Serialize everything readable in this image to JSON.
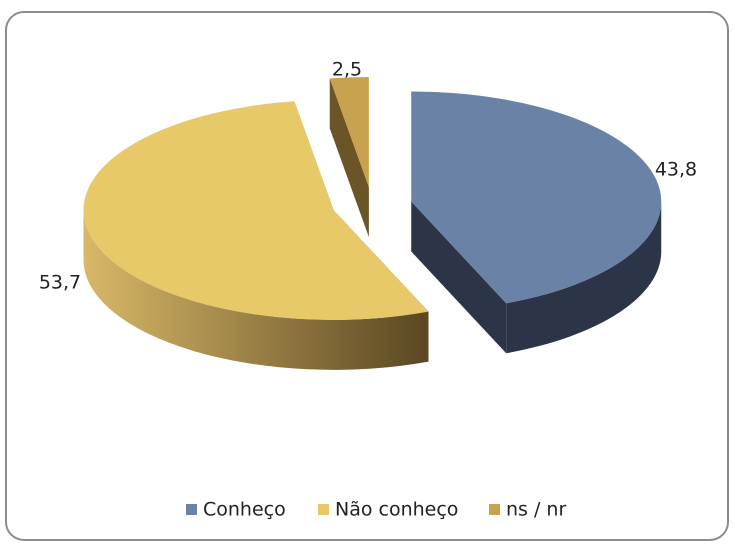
{
  "chart_data": {
    "type": "pie",
    "style": "3d-exploded",
    "categories": [
      "Conheço",
      "Não conheço",
      "ns / nr"
    ],
    "values": [
      43.8,
      53.7,
      2.5
    ],
    "value_labels": [
      "43,8",
      "53,7",
      "2,5"
    ],
    "colors": [
      "#6a82a5",
      "#e8c96a",
      "#c9a24f"
    ],
    "legend": "bottom"
  }
}
